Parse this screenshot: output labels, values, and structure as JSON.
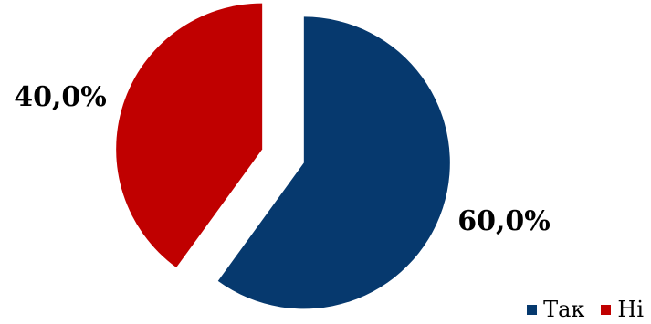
{
  "chart_data": {
    "type": "pie",
    "categories": [
      "Так",
      "Ні"
    ],
    "values": [
      60.0,
      40.0
    ],
    "data_labels": [
      "60,0%",
      "40,0%"
    ],
    "colors": [
      "#06396e",
      "#c00000"
    ],
    "exploded": true,
    "legend_position": "bottom-right",
    "title": ""
  }
}
